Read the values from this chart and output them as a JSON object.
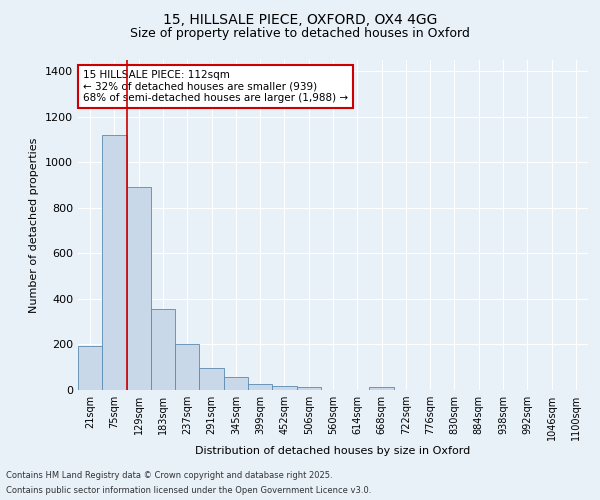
{
  "title1": "15, HILLSALE PIECE, OXFORD, OX4 4GG",
  "title2": "Size of property relative to detached houses in Oxford",
  "xlabel": "Distribution of detached houses by size in Oxford",
  "ylabel": "Number of detached properties",
  "footnote1": "Contains HM Land Registry data © Crown copyright and database right 2025.",
  "footnote2": "Contains public sector information licensed under the Open Government Licence v3.0.",
  "categories": [
    "21sqm",
    "75sqm",
    "129sqm",
    "183sqm",
    "237sqm",
    "291sqm",
    "345sqm",
    "399sqm",
    "452sqm",
    "506sqm",
    "560sqm",
    "614sqm",
    "668sqm",
    "722sqm",
    "776sqm",
    "830sqm",
    "884sqm",
    "938sqm",
    "992sqm",
    "1046sqm",
    "1100sqm"
  ],
  "values": [
    195,
    1120,
    890,
    355,
    200,
    95,
    58,
    25,
    18,
    12,
    0,
    0,
    15,
    0,
    0,
    0,
    0,
    0,
    0,
    0,
    0
  ],
  "bar_color": "#c8d8e8",
  "bar_edge_color": "#5a8ab0",
  "property_line_x": 1.5,
  "legend_title": "15 HILLSALE PIECE: 112sqm",
  "legend_line1": "← 32% of detached houses are smaller (939)",
  "legend_line2": "68% of semi-detached houses are larger (1,988) →",
  "legend_box_color": "#cc0000",
  "vline_color": "#cc0000",
  "bg_color": "#e8f0f8",
  "grid_color": "#ffffff",
  "ylim": [
    0,
    1450
  ],
  "yticks": [
    0,
    200,
    400,
    600,
    800,
    1000,
    1200,
    1400
  ]
}
